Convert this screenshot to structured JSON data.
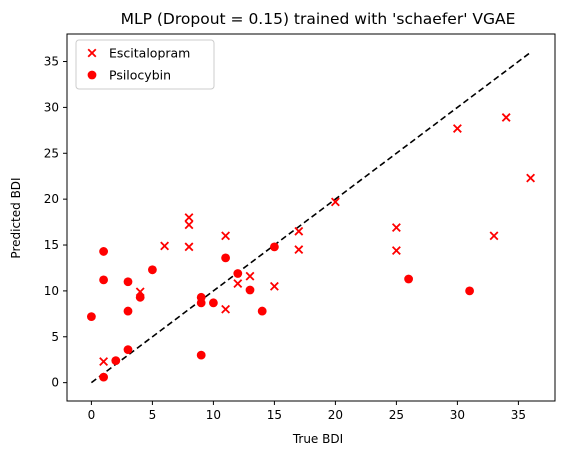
{
  "chart_data": {
    "type": "scatter",
    "title": "MLP (Dropout = 0.15) trained with 'schaefer' VGAE",
    "xlabel": "True BDI",
    "ylabel": "Predicted BDI",
    "xlim": [
      -2,
      38
    ],
    "ylim": [
      -2,
      38
    ],
    "xticks": [
      0,
      5,
      10,
      15,
      20,
      25,
      30,
      35
    ],
    "yticks": [
      0,
      5,
      10,
      15,
      20,
      25,
      30,
      35
    ],
    "grid": false,
    "legend_position": "top-left",
    "reference_line": {
      "style": "dashed",
      "color": "#000000",
      "x": [
        0,
        36
      ],
      "y": [
        0,
        36
      ]
    },
    "series": [
      {
        "name": "Escitalopram",
        "marker": "x",
        "color": "#ff0000",
        "points": [
          [
            1,
            2.3
          ],
          [
            4,
            9.9
          ],
          [
            6,
            14.9
          ],
          [
            8,
            18.0
          ],
          [
            8,
            17.2
          ],
          [
            8,
            14.8
          ],
          [
            11,
            16.0
          ],
          [
            11,
            8.0
          ],
          [
            12,
            10.8
          ],
          [
            13,
            11.6
          ],
          [
            15,
            10.5
          ],
          [
            17,
            16.5
          ],
          [
            17,
            14.5
          ],
          [
            20,
            19.7
          ],
          [
            25,
            16.9
          ],
          [
            25,
            14.4
          ],
          [
            30,
            27.7
          ],
          [
            33,
            16.0
          ],
          [
            34,
            28.9
          ],
          [
            36,
            22.3
          ]
        ]
      },
      {
        "name": "Psilocybin",
        "marker": "o",
        "color": "#ff0000",
        "points": [
          [
            0,
            7.2
          ],
          [
            1,
            14.3
          ],
          [
            1,
            11.2
          ],
          [
            1,
            0.6
          ],
          [
            2,
            2.4
          ],
          [
            3,
            11.0
          ],
          [
            3,
            7.8
          ],
          [
            3,
            3.6
          ],
          [
            4,
            9.3
          ],
          [
            5,
            12.3
          ],
          [
            9,
            9.3
          ],
          [
            9,
            8.7
          ],
          [
            9,
            3.0
          ],
          [
            10,
            8.7
          ],
          [
            11,
            13.6
          ],
          [
            12,
            11.9
          ],
          [
            13,
            10.1
          ],
          [
            14,
            7.8
          ],
          [
            15,
            14.8
          ],
          [
            26,
            11.3
          ],
          [
            31,
            10.0
          ]
        ]
      }
    ]
  }
}
